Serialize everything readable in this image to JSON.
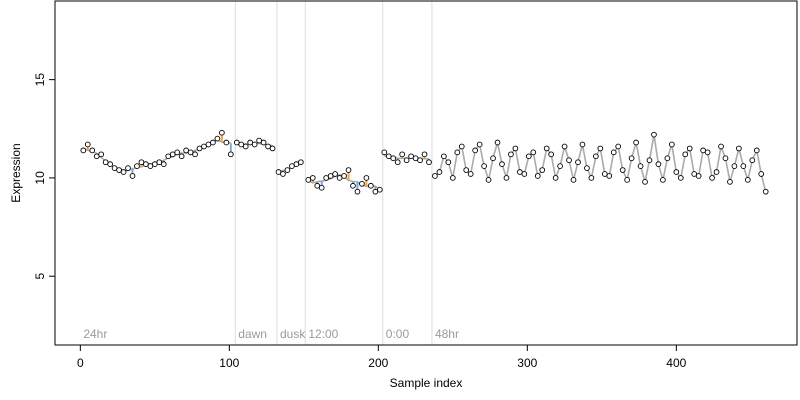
{
  "chart_data": {
    "type": "scatter",
    "title": "",
    "xlabel": "Sample index",
    "ylabel": "Expression",
    "xlim": [
      -17,
      481
    ],
    "ylim": [
      1.5,
      19
    ],
    "xticks": [
      0,
      100,
      200,
      300,
      400
    ],
    "yticks": [
      5,
      10,
      15
    ],
    "grid": false,
    "legend": "none",
    "colors": {
      "observed_fill": "#ffffff",
      "observed_stroke": "#000000",
      "above_fit": "#f3a33a",
      "below_fit": "#7fa7dd",
      "fit_line": "#aaaaaa",
      "region_line": "#dddddd",
      "region_text": "#9a9a9a"
    },
    "regions": [
      {
        "label": "24hr",
        "start": 0
      },
      {
        "label": "dawn",
        "start": 104
      },
      {
        "label": "dusk",
        "start": 132
      },
      {
        "label": "12:00",
        "start": 151
      },
      {
        "label": "0:00",
        "start": 203
      },
      {
        "label": "48hr",
        "start": 236
      }
    ],
    "series": [
      {
        "segment": "24hr",
        "x_range": [
          2,
          103
        ],
        "points": [
          [
            2,
            11.4
          ],
          [
            5,
            11.7
          ],
          [
            8,
            11.4
          ],
          [
            11,
            11.1
          ],
          [
            14,
            11.2
          ],
          [
            17,
            10.8
          ],
          [
            20,
            10.7
          ],
          [
            23,
            10.5
          ],
          [
            26,
            10.4
          ],
          [
            29,
            10.3
          ],
          [
            32,
            10.5
          ],
          [
            35,
            10.1
          ],
          [
            38,
            10.6
          ],
          [
            41,
            10.8
          ],
          [
            44,
            10.7
          ],
          [
            47,
            10.6
          ],
          [
            50,
            10.7
          ],
          [
            53,
            10.8
          ],
          [
            56,
            10.7
          ],
          [
            59,
            11.1
          ],
          [
            62,
            11.2
          ],
          [
            65,
            11.3
          ],
          [
            68,
            11.1
          ],
          [
            71,
            11.4
          ],
          [
            74,
            11.3
          ],
          [
            77,
            11.2
          ],
          [
            80,
            11.5
          ],
          [
            83,
            11.6
          ],
          [
            86,
            11.7
          ],
          [
            89,
            11.8
          ],
          [
            92,
            12.0
          ],
          [
            95,
            12.3
          ],
          [
            98,
            11.8
          ],
          [
            101,
            11.2
          ]
        ]
      },
      {
        "segment": "dawn",
        "x_range": [
          104,
          131
        ],
        "points": [
          [
            105,
            11.8
          ],
          [
            108,
            11.7
          ],
          [
            111,
            11.6
          ],
          [
            114,
            11.8
          ],
          [
            117,
            11.7
          ],
          [
            120,
            11.9
          ],
          [
            123,
            11.8
          ],
          [
            126,
            11.6
          ],
          [
            129,
            11.5
          ]
        ]
      },
      {
        "segment": "dusk",
        "x_range": [
          132,
          150
        ],
        "points": [
          [
            133,
            10.3
          ],
          [
            136,
            10.2
          ],
          [
            139,
            10.4
          ],
          [
            142,
            10.6
          ],
          [
            145,
            10.7
          ],
          [
            148,
            10.8
          ]
        ]
      },
      {
        "segment": "12:00",
        "x_range": [
          151,
          202
        ],
        "points": [
          [
            153,
            9.9
          ],
          [
            156,
            10.0
          ],
          [
            159,
            9.6
          ],
          [
            162,
            9.5
          ],
          [
            165,
            10.0
          ],
          [
            168,
            10.1
          ],
          [
            171,
            10.2
          ],
          [
            174,
            10.0
          ],
          [
            177,
            10.1
          ],
          [
            180,
            10.4
          ],
          [
            183,
            9.6
          ],
          [
            186,
            9.3
          ],
          [
            189,
            9.7
          ],
          [
            192,
            10.0
          ],
          [
            195,
            9.6
          ],
          [
            198,
            9.3
          ],
          [
            201,
            9.4
          ]
        ]
      },
      {
        "segment": "0:00",
        "x_range": [
          203,
          235
        ],
        "points": [
          [
            204,
            11.3
          ],
          [
            207,
            11.1
          ],
          [
            210,
            11.0
          ],
          [
            213,
            10.8
          ],
          [
            216,
            11.2
          ],
          [
            219,
            10.9
          ],
          [
            222,
            11.1
          ],
          [
            225,
            11.0
          ],
          [
            228,
            10.9
          ],
          [
            231,
            11.2
          ],
          [
            234,
            10.8
          ]
        ]
      },
      {
        "segment": "48hr",
        "x_range": [
          236,
          463
        ],
        "points": [
          [
            238,
            10.1
          ],
          [
            241,
            10.3
          ],
          [
            244,
            11.1
          ],
          [
            247,
            10.8
          ],
          [
            250,
            10.0
          ],
          [
            253,
            11.3
          ],
          [
            256,
            11.6
          ],
          [
            259,
            10.4
          ],
          [
            262,
            10.2
          ],
          [
            265,
            11.4
          ],
          [
            268,
            11.7
          ],
          [
            271,
            10.6
          ],
          [
            274,
            9.9
          ],
          [
            277,
            11.0
          ],
          [
            280,
            11.8
          ],
          [
            283,
            10.7
          ],
          [
            286,
            10.0
          ],
          [
            289,
            11.2
          ],
          [
            292,
            11.5
          ],
          [
            295,
            10.3
          ],
          [
            298,
            10.2
          ],
          [
            301,
            11.1
          ],
          [
            304,
            11.3
          ],
          [
            307,
            10.1
          ],
          [
            310,
            10.4
          ],
          [
            313,
            11.5
          ],
          [
            316,
            11.2
          ],
          [
            319,
            10.0
          ],
          [
            322,
            10.6
          ],
          [
            325,
            11.6
          ],
          [
            328,
            10.9
          ],
          [
            331,
            9.9
          ],
          [
            334,
            10.8
          ],
          [
            337,
            11.7
          ],
          [
            340,
            10.5
          ],
          [
            343,
            10.0
          ],
          [
            346,
            11.1
          ],
          [
            349,
            11.5
          ],
          [
            352,
            10.2
          ],
          [
            355,
            10.1
          ],
          [
            358,
            11.3
          ],
          [
            361,
            11.6
          ],
          [
            364,
            10.4
          ],
          [
            367,
            9.9
          ],
          [
            370,
            11.0
          ],
          [
            373,
            11.8
          ],
          [
            376,
            10.6
          ],
          [
            379,
            9.8
          ],
          [
            382,
            10.9
          ],
          [
            385,
            12.2
          ],
          [
            388,
            10.7
          ],
          [
            391,
            9.9
          ],
          [
            394,
            11.0
          ],
          [
            397,
            11.7
          ],
          [
            400,
            10.3
          ],
          [
            403,
            10.0
          ],
          [
            406,
            11.2
          ],
          [
            409,
            11.5
          ],
          [
            412,
            10.2
          ],
          [
            415,
            10.1
          ],
          [
            418,
            11.4
          ],
          [
            421,
            11.3
          ],
          [
            424,
            10.0
          ],
          [
            427,
            10.3
          ],
          [
            430,
            11.6
          ],
          [
            433,
            11.0
          ],
          [
            436,
            9.8
          ],
          [
            439,
            10.6
          ],
          [
            442,
            11.5
          ],
          [
            445,
            10.6
          ],
          [
            448,
            9.9
          ],
          [
            451,
            10.9
          ],
          [
            454,
            11.4
          ],
          [
            457,
            10.2
          ],
          [
            460,
            9.3
          ]
        ]
      }
    ]
  }
}
